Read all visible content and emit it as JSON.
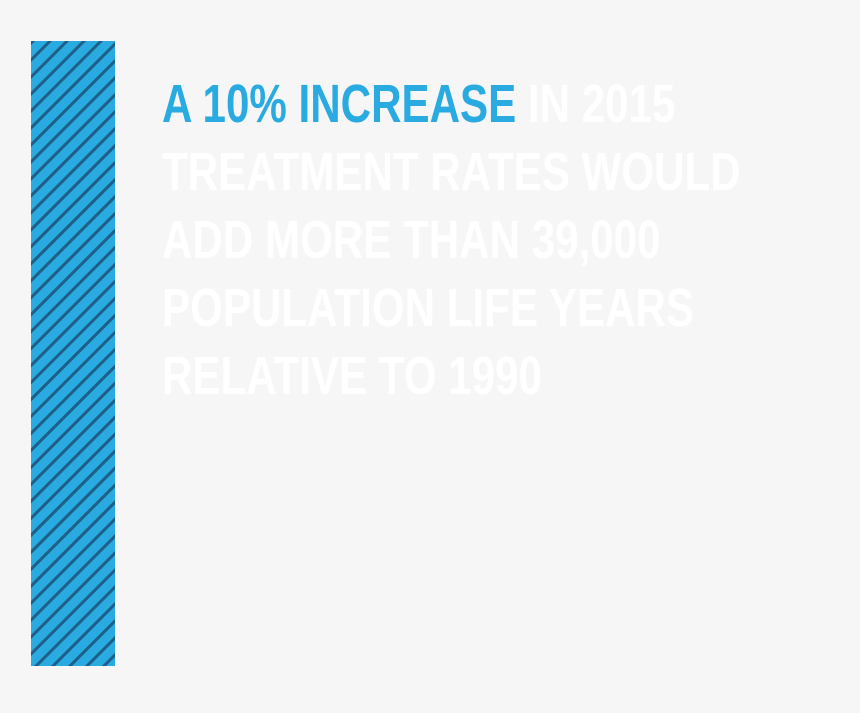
{
  "headline": {
    "highlight": "A 10% INCREASE",
    "lines": [
      "IN 2015",
      "TREATMENT RATES WOULD",
      "ADD MORE THAN 39,000",
      "POPULATION LIFE YEARS",
      "RELATIVE TO 1990"
    ]
  }
}
